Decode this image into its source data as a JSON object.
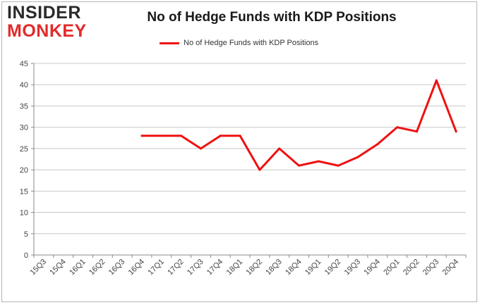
{
  "logo": {
    "line1": "INSIDER",
    "line2": "MONKEY"
  },
  "chart_data": {
    "type": "line",
    "title": "No of Hedge Funds with KDP Positions",
    "xlabel": "",
    "ylabel": "",
    "categories": [
      "15Q3",
      "15Q4",
      "16Q1",
      "16Q2",
      "16Q3",
      "16Q4",
      "17Q1",
      "17Q2",
      "17Q3",
      "17Q4",
      "18Q1",
      "18Q2",
      "18Q3",
      "18Q4",
      "19Q1",
      "19Q2",
      "19Q3",
      "19Q4",
      "20Q1",
      "20Q2",
      "20Q3",
      "20Q4"
    ],
    "series": [
      {
        "name": "No of Hedge Funds with KDP Positions",
        "color": "#ee1111",
        "values": [
          null,
          null,
          null,
          null,
          null,
          28,
          28,
          28,
          25,
          28,
          28,
          20,
          25,
          21,
          22,
          21,
          23,
          26,
          30,
          29,
          41,
          29
        ]
      }
    ],
    "ylim": [
      0,
      45
    ],
    "yticks": [
      0,
      5,
      10,
      15,
      20,
      25,
      30,
      35,
      40,
      45
    ],
    "grid": true,
    "legend": "top-center"
  }
}
